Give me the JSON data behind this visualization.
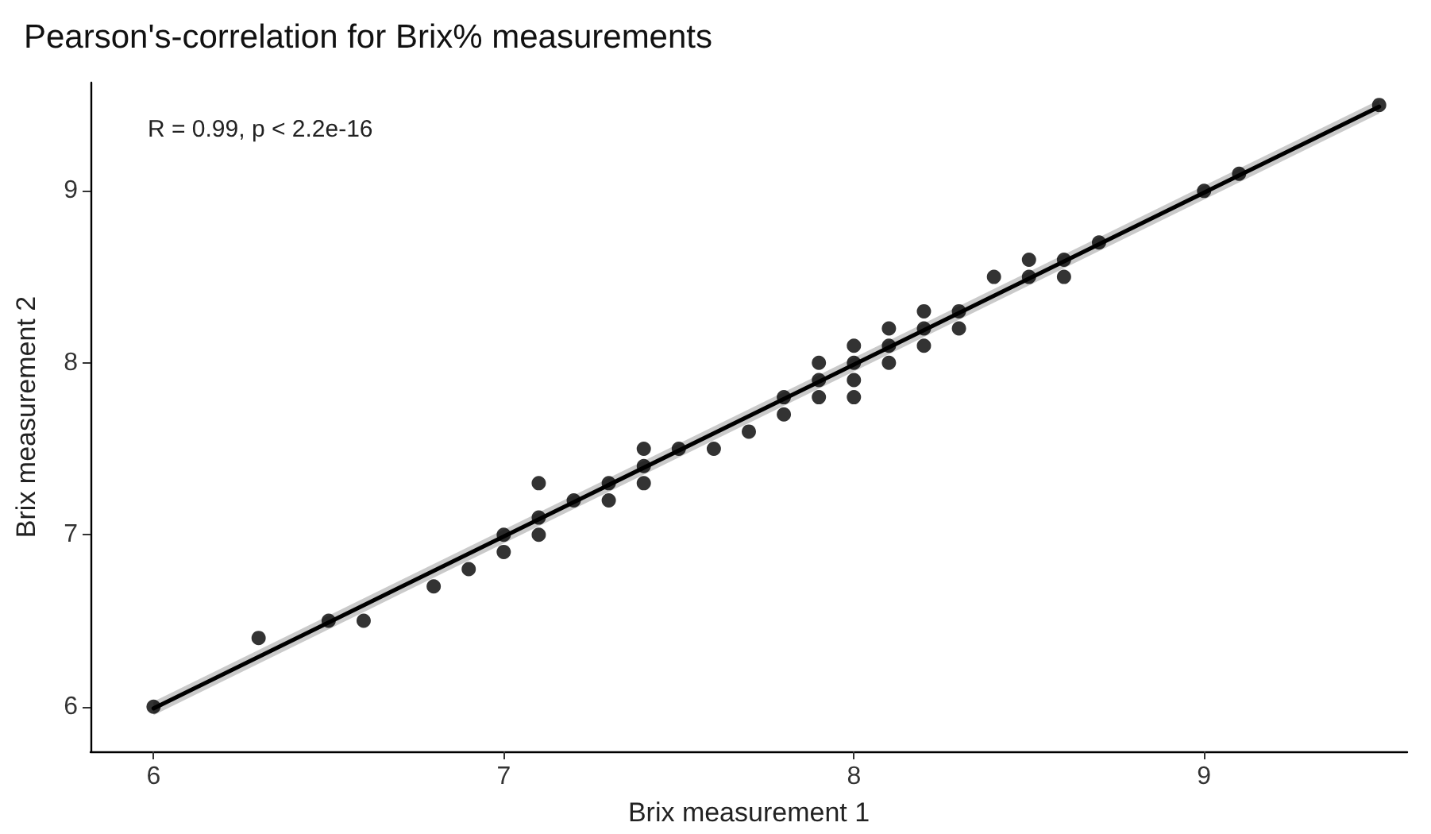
{
  "chart_data": {
    "type": "scatter",
    "title": "Pearson's-correlation for Brix% measurements",
    "xlabel": "Brix measurement 1",
    "ylabel": "Brix measurement 2",
    "annotations": [
      "R = 0.99, p < 2.2e-16"
    ],
    "xlim": [
      5.82,
      9.58
    ],
    "ylim": [
      5.74,
      9.63
    ],
    "xticks": [
      6,
      7,
      8,
      9
    ],
    "yticks": [
      6,
      7,
      8,
      9
    ],
    "grid": false,
    "marker": "circle",
    "series": [
      {
        "color": "#000000",
        "x": [
          6,
          6.3,
          6.5,
          6.6,
          6.8,
          6.9,
          7,
          7,
          7.1,
          7.1,
          7.1,
          7.2,
          7.3,
          7.3,
          7.4,
          7.4,
          7.4,
          7.5,
          7.6,
          7.7,
          7.8,
          7.8,
          7.9,
          7.9,
          7.9,
          8,
          8,
          8,
          8,
          8.1,
          8.1,
          8.1,
          8.2,
          8.2,
          8.2,
          8.3,
          8.3,
          8.4,
          8.5,
          8.5,
          8.6,
          8.6,
          8.7,
          9,
          9.1,
          9.5
        ],
        "values": [
          6,
          6.4,
          6.5,
          6.5,
          6.7,
          6.8,
          7,
          6.9,
          7.3,
          7.1,
          7,
          7.2,
          7.3,
          7.2,
          7.5,
          7.4,
          7.3,
          7.5,
          7.5,
          7.6,
          7.8,
          7.7,
          8,
          7.9,
          7.8,
          8.1,
          8,
          7.9,
          7.8,
          8.2,
          8.1,
          8,
          8.3,
          8.2,
          8.1,
          8.3,
          8.2,
          8.5,
          8.6,
          8.5,
          8.6,
          8.5,
          8.7,
          9,
          9.1,
          9.5
        ]
      },
      {
        "type": "line",
        "color": "#000000",
        "marker": "none",
        "line_style": "solid",
        "x": [
          6,
          9.5
        ],
        "values": [
          5.99,
          9.49
        ],
        "lower": [
          5.95,
          9.45
        ],
        "upper": [
          6.03,
          9.53
        ]
      }
    ]
  }
}
